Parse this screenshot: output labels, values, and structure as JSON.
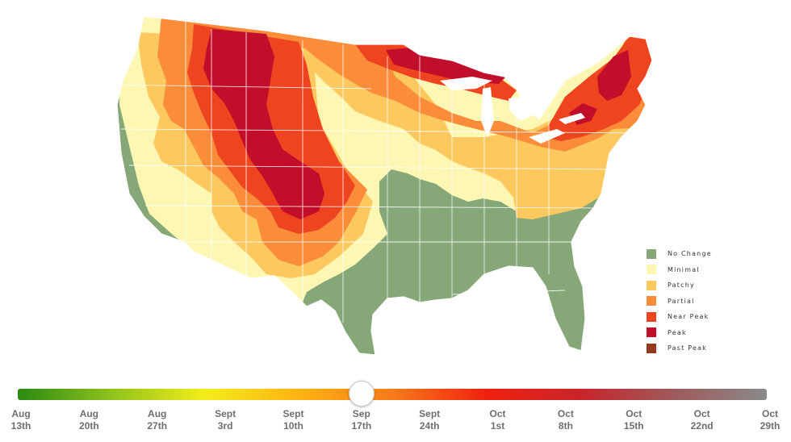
{
  "colors": {
    "no_change": "#86a879",
    "minimal": "#fdf7b3",
    "patchy": "#fdc95e",
    "partial": "#fb8c3a",
    "near_peak": "#ee4420",
    "peak": "#c10e2a",
    "past_peak": "#93391e",
    "state_border": "#ffffff"
  },
  "legend": {
    "items": [
      {
        "label": "No Change",
        "color": "#86a879"
      },
      {
        "label": "Minimal",
        "color": "#fdf7b3"
      },
      {
        "label": "Patchy",
        "color": "#fdc95e"
      },
      {
        "label": "Partial",
        "color": "#fb8c3a"
      },
      {
        "label": "Near Peak",
        "color": "#ee4420"
      },
      {
        "label": "Peak",
        "color": "#c10e2a"
      },
      {
        "label": "Past Peak",
        "color": "#93391e"
      }
    ]
  },
  "timeline": {
    "selected_index": 5,
    "gradient": [
      "#2a8a12",
      "#8fc21c",
      "#f3ee1a",
      "#fdb213",
      "#f77b18",
      "#f0220f",
      "#c8242a",
      "#9e5a5a",
      "#8a8a8a"
    ],
    "dates": [
      {
        "month": "Aug",
        "day": "13th"
      },
      {
        "month": "Aug",
        "day": "20th"
      },
      {
        "month": "Aug",
        "day": "27th"
      },
      {
        "month": "Sept",
        "day": "3rd"
      },
      {
        "month": "Sept",
        "day": "10th"
      },
      {
        "month": "Sep",
        "day": "17th"
      },
      {
        "month": "Sept",
        "day": "24th"
      },
      {
        "month": "Oct",
        "day": "1st"
      },
      {
        "month": "Oct",
        "day": "8th"
      },
      {
        "month": "Oct",
        "day": "15th"
      },
      {
        "month": "Oct",
        "day": "22nd"
      },
      {
        "month": "Oct",
        "day": "29th"
      }
    ]
  }
}
